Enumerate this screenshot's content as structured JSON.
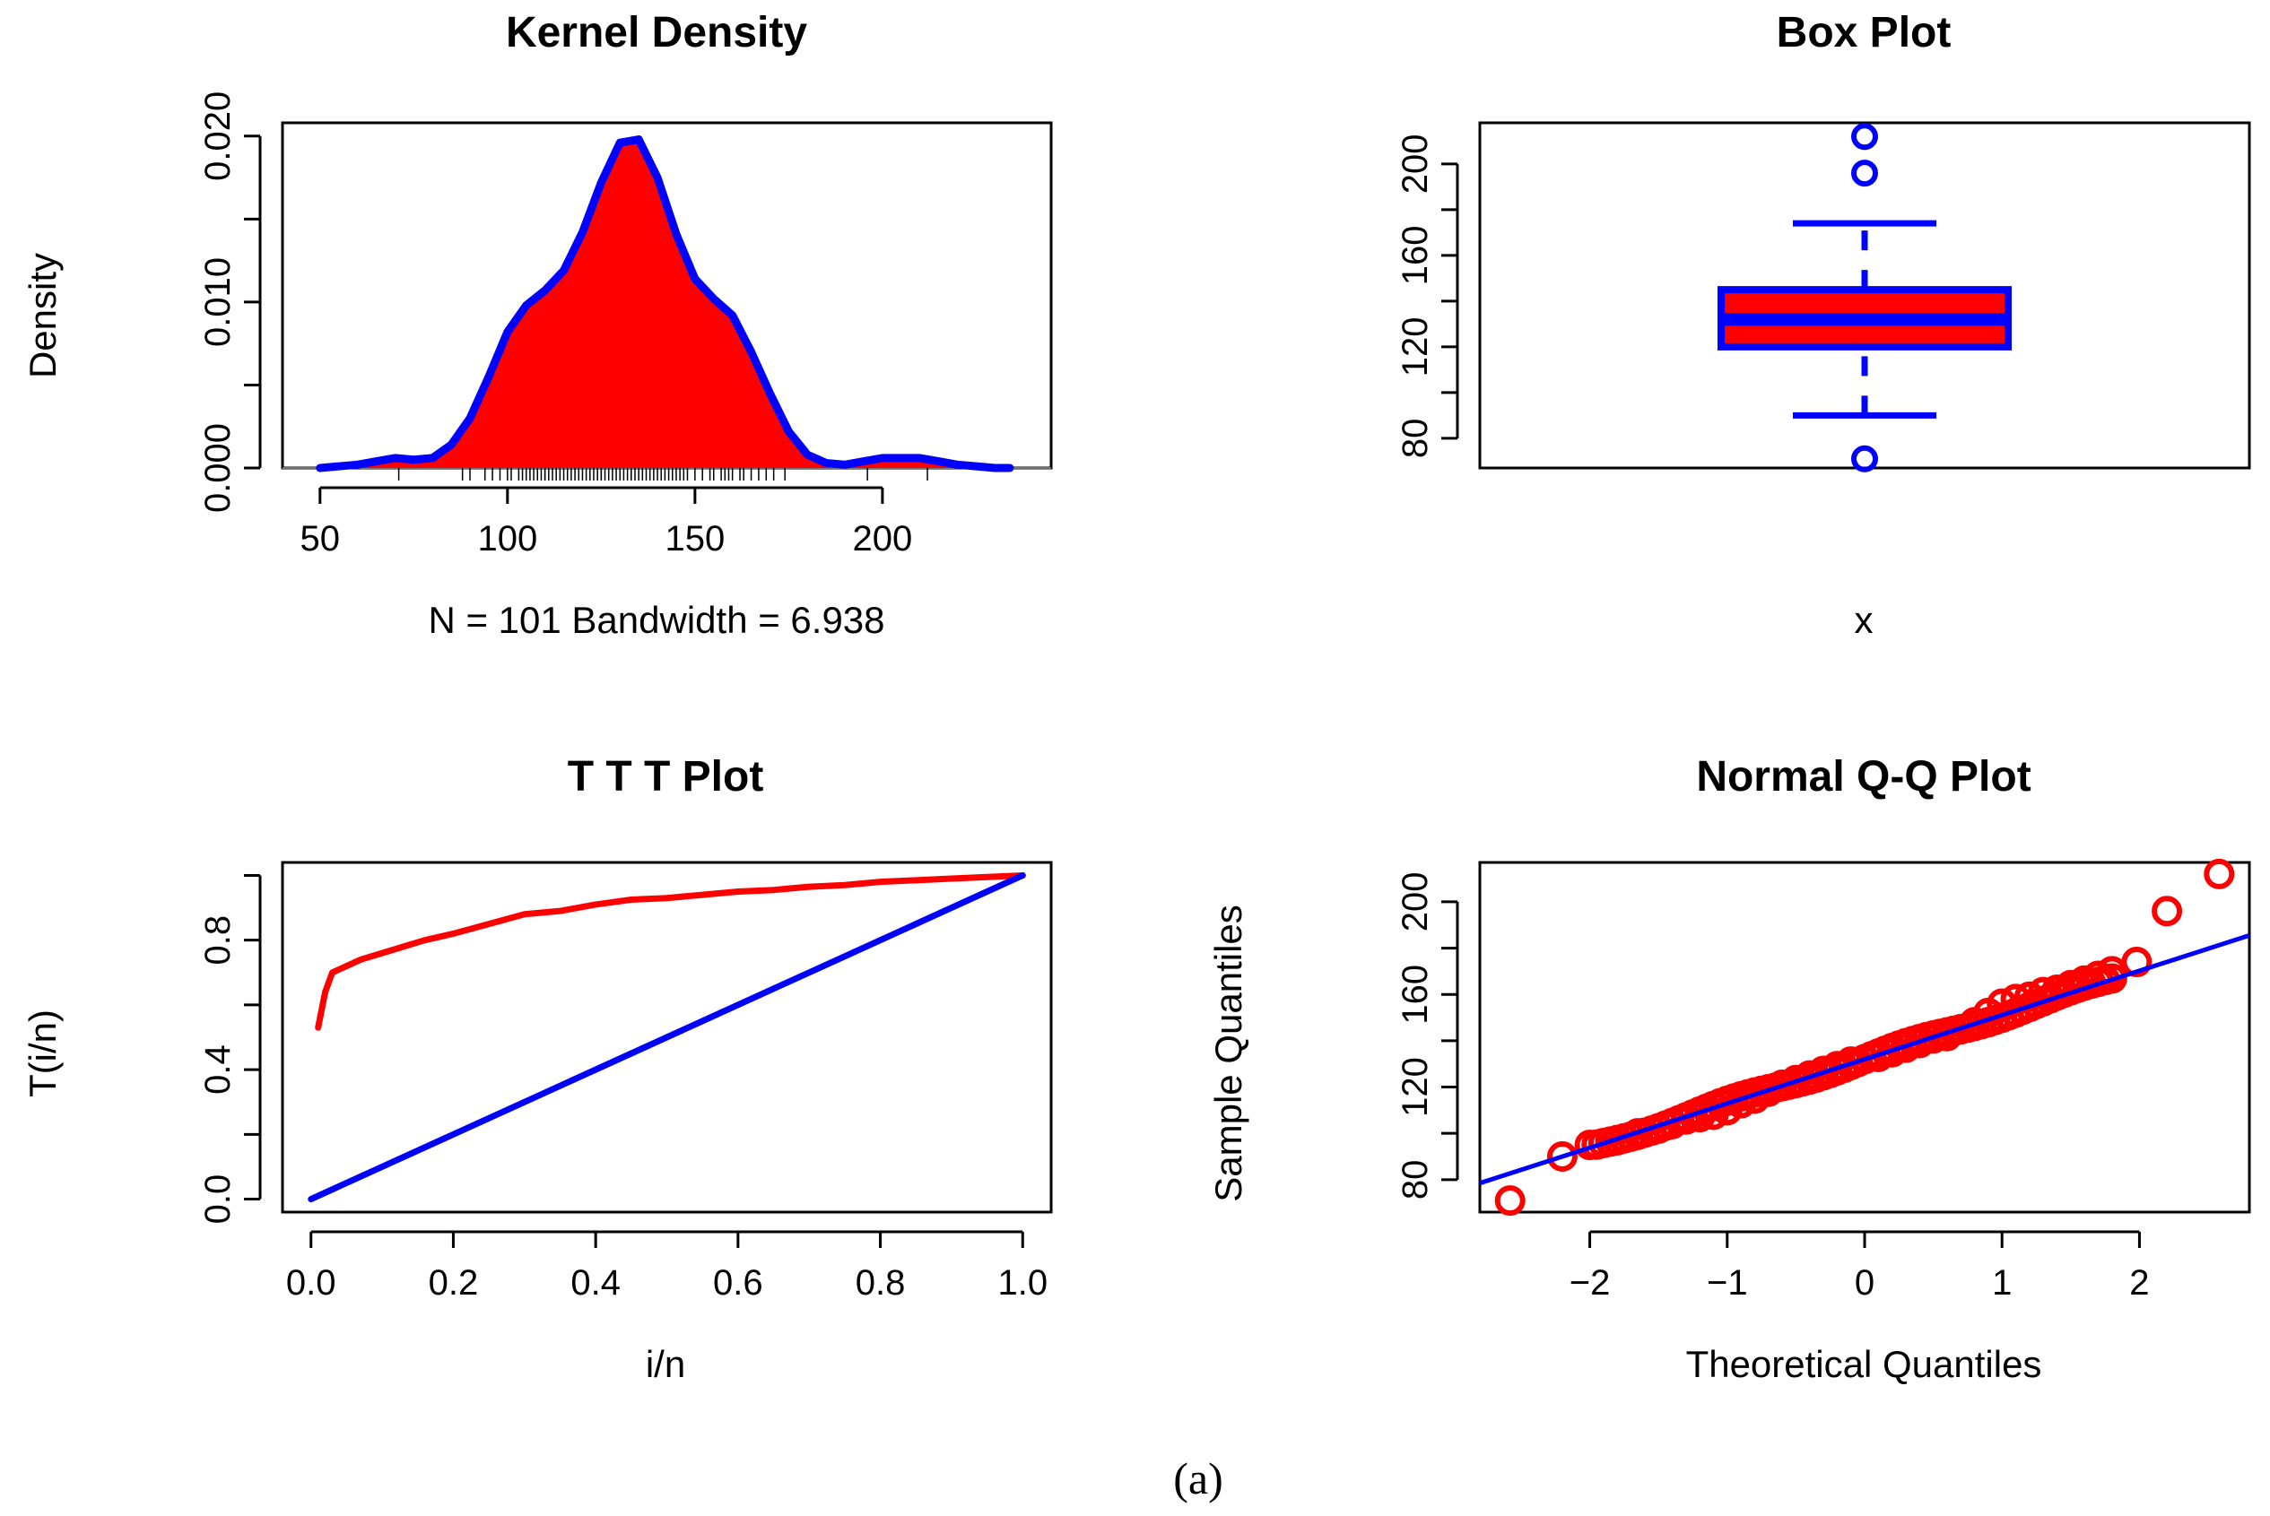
{
  "caption": "(a)",
  "chart_data": [
    {
      "type": "area",
      "title": "Kernel Density",
      "xlabel": "N = 101   Bandwidth = 6.938",
      "ylabel": "Density",
      "xlim": [
        40,
        245
      ],
      "ylim": [
        0,
        0.0208
      ],
      "xticks": [
        50,
        100,
        150,
        200
      ],
      "xtick_labels": [
        "50",
        "100",
        "150",
        "200"
      ],
      "yticks": [
        0,
        0.005,
        0.01,
        0.015,
        0.02
      ],
      "ytick_labels": [
        "0.000",
        "",
        "0.010",
        "",
        "0.020"
      ],
      "fill_color": "#ff0000",
      "line_color": "#0000ff",
      "x": [
        50,
        60,
        65,
        70,
        75,
        80,
        85,
        90,
        95,
        100,
        105,
        110,
        115,
        120,
        125,
        130,
        135,
        140,
        145,
        150,
        155,
        160,
        165,
        170,
        175,
        180,
        185,
        190,
        195,
        200,
        205,
        210,
        215,
        220,
        225,
        230,
        234
      ],
      "y": [
        0.0,
        0.0002,
        0.0004,
        0.0006,
        0.0005,
        0.0006,
        0.0014,
        0.003,
        0.0055,
        0.0082,
        0.0098,
        0.0107,
        0.0119,
        0.0142,
        0.0172,
        0.0196,
        0.0198,
        0.0175,
        0.0141,
        0.0114,
        0.0102,
        0.0092,
        0.007,
        0.0045,
        0.0022,
        0.0008,
        0.0003,
        0.0002,
        0.0004,
        0.0006,
        0.0006,
        0.0006,
        0.0004,
        0.0002,
        0.0001,
        0.0,
        0.0
      ],
      "rug": [
        71,
        88,
        90,
        94,
        96,
        98,
        100,
        101,
        103,
        104,
        105,
        106,
        107,
        108,
        109,
        110,
        110,
        111,
        112,
        113,
        114,
        115,
        116,
        117,
        118,
        119,
        120,
        121,
        122,
        123,
        124,
        125,
        125,
        126,
        127,
        128,
        129,
        130,
        130,
        131,
        132,
        133,
        133,
        134,
        135,
        136,
        137,
        138,
        139,
        140,
        141,
        142,
        143,
        144,
        145,
        146,
        147,
        148,
        150,
        152,
        154,
        155,
        157,
        158,
        159,
        160,
        162,
        163,
        165,
        167,
        169,
        171,
        174,
        196,
        212
      ]
    },
    {
      "type": "box",
      "title": "Box Plot",
      "xlabel": "x",
      "ylim": [
        67,
        218
      ],
      "yticks": [
        80,
        100,
        120,
        140,
        160,
        180,
        200
      ],
      "ytick_labels": [
        "80",
        "",
        "120",
        "",
        "160",
        "",
        "200"
      ],
      "box_color": "#ff0000",
      "border_color": "#0000ff",
      "whisker_low": 90,
      "q1": 120,
      "median": 132,
      "q3": 145,
      "whisker_high": 174,
      "outliers": [
        71,
        196,
        212
      ]
    },
    {
      "type": "line",
      "title": "T T T Plot",
      "xlabel": "i/n",
      "ylabel": "T(i/n)",
      "xlim": [
        -0.04,
        1.04
      ],
      "ylim": [
        -0.04,
        1.04
      ],
      "xticks": [
        0,
        0.2,
        0.4,
        0.6,
        0.8,
        1.0
      ],
      "xtick_labels": [
        "0.0",
        "0.2",
        "0.4",
        "0.6",
        "0.8",
        "1.0"
      ],
      "yticks": [
        0,
        0.2,
        0.4,
        0.6,
        0.8,
        1.0
      ],
      "ytick_labels": [
        "0.0",
        "",
        "0.4",
        "",
        "0.8",
        ""
      ],
      "series": [
        {
          "color": "#ff0000",
          "x": [
            0.01,
            0.02,
            0.03,
            0.05,
            0.07,
            0.1,
            0.13,
            0.16,
            0.2,
            0.25,
            0.3,
            0.35,
            0.4,
            0.45,
            0.5,
            0.55,
            0.6,
            0.65,
            0.7,
            0.75,
            0.8,
            0.85,
            0.9,
            0.95,
            1.0
          ],
          "y": [
            0.53,
            0.64,
            0.7,
            0.72,
            0.74,
            0.76,
            0.78,
            0.8,
            0.82,
            0.85,
            0.88,
            0.89,
            0.91,
            0.925,
            0.93,
            0.94,
            0.95,
            0.955,
            0.965,
            0.97,
            0.98,
            0.985,
            0.99,
            0.995,
            1.0
          ]
        },
        {
          "color": "#0000ff",
          "x": [
            0,
            1
          ],
          "y": [
            0,
            1
          ]
        }
      ]
    },
    {
      "type": "scatter",
      "title": "Normal Q-Q Plot",
      "xlabel": "Theoretical Quantiles",
      "ylabel": "Sample Quantiles",
      "xlim": [
        -2.8,
        2.8
      ],
      "ylim": [
        66,
        217
      ],
      "xticks": [
        -2,
        -1,
        0,
        1,
        2
      ],
      "xtick_labels": [
        "−2",
        "−1",
        "0",
        "1",
        "2"
      ],
      "yticks": [
        80,
        100,
        120,
        140,
        160,
        180,
        200
      ],
      "ytick_labels": [
        "80",
        "",
        "120",
        "",
        "160",
        "",
        "200"
      ],
      "point_color": "#ff0000",
      "line_color": "#0000ff",
      "reference_line": {
        "intercept": 132,
        "slope": 19.1
      },
      "points": [
        [
          -2.58,
          71
        ],
        [
          -2.2,
          90
        ],
        [
          -2.0,
          95
        ],
        [
          -1.8,
          97
        ],
        [
          -1.65,
          100
        ],
        [
          -1.5,
          102
        ],
        [
          -1.4,
          104
        ],
        [
          -1.3,
          106
        ],
        [
          -1.2,
          107
        ],
        [
          -1.1,
          108
        ],
        [
          -1.0,
          110
        ],
        [
          -0.9,
          113
        ],
        [
          -0.8,
          115
        ],
        [
          -0.7,
          118
        ],
        [
          -0.6,
          121
        ],
        [
          -0.5,
          123
        ],
        [
          -0.4,
          125
        ],
        [
          -0.3,
          127
        ],
        [
          -0.2,
          129
        ],
        [
          -0.1,
          131
        ],
        [
          0.0,
          132
        ],
        [
          0.1,
          133
        ],
        [
          0.2,
          135
        ],
        [
          0.3,
          137
        ],
        [
          0.4,
          139
        ],
        [
          0.5,
          141
        ],
        [
          0.6,
          142
        ],
        [
          0.7,
          145
        ],
        [
          0.8,
          148
        ],
        [
          0.9,
          152
        ],
        [
          1.0,
          156
        ],
        [
          1.1,
          158
        ],
        [
          1.2,
          159
        ],
        [
          1.3,
          161
        ],
        [
          1.4,
          162
        ],
        [
          1.5,
          164
        ],
        [
          1.6,
          166
        ],
        [
          1.7,
          168
        ],
        [
          1.8,
          170
        ],
        [
          1.98,
          174
        ],
        [
          2.2,
          196
        ],
        [
          2.58,
          212
        ]
      ]
    }
  ]
}
